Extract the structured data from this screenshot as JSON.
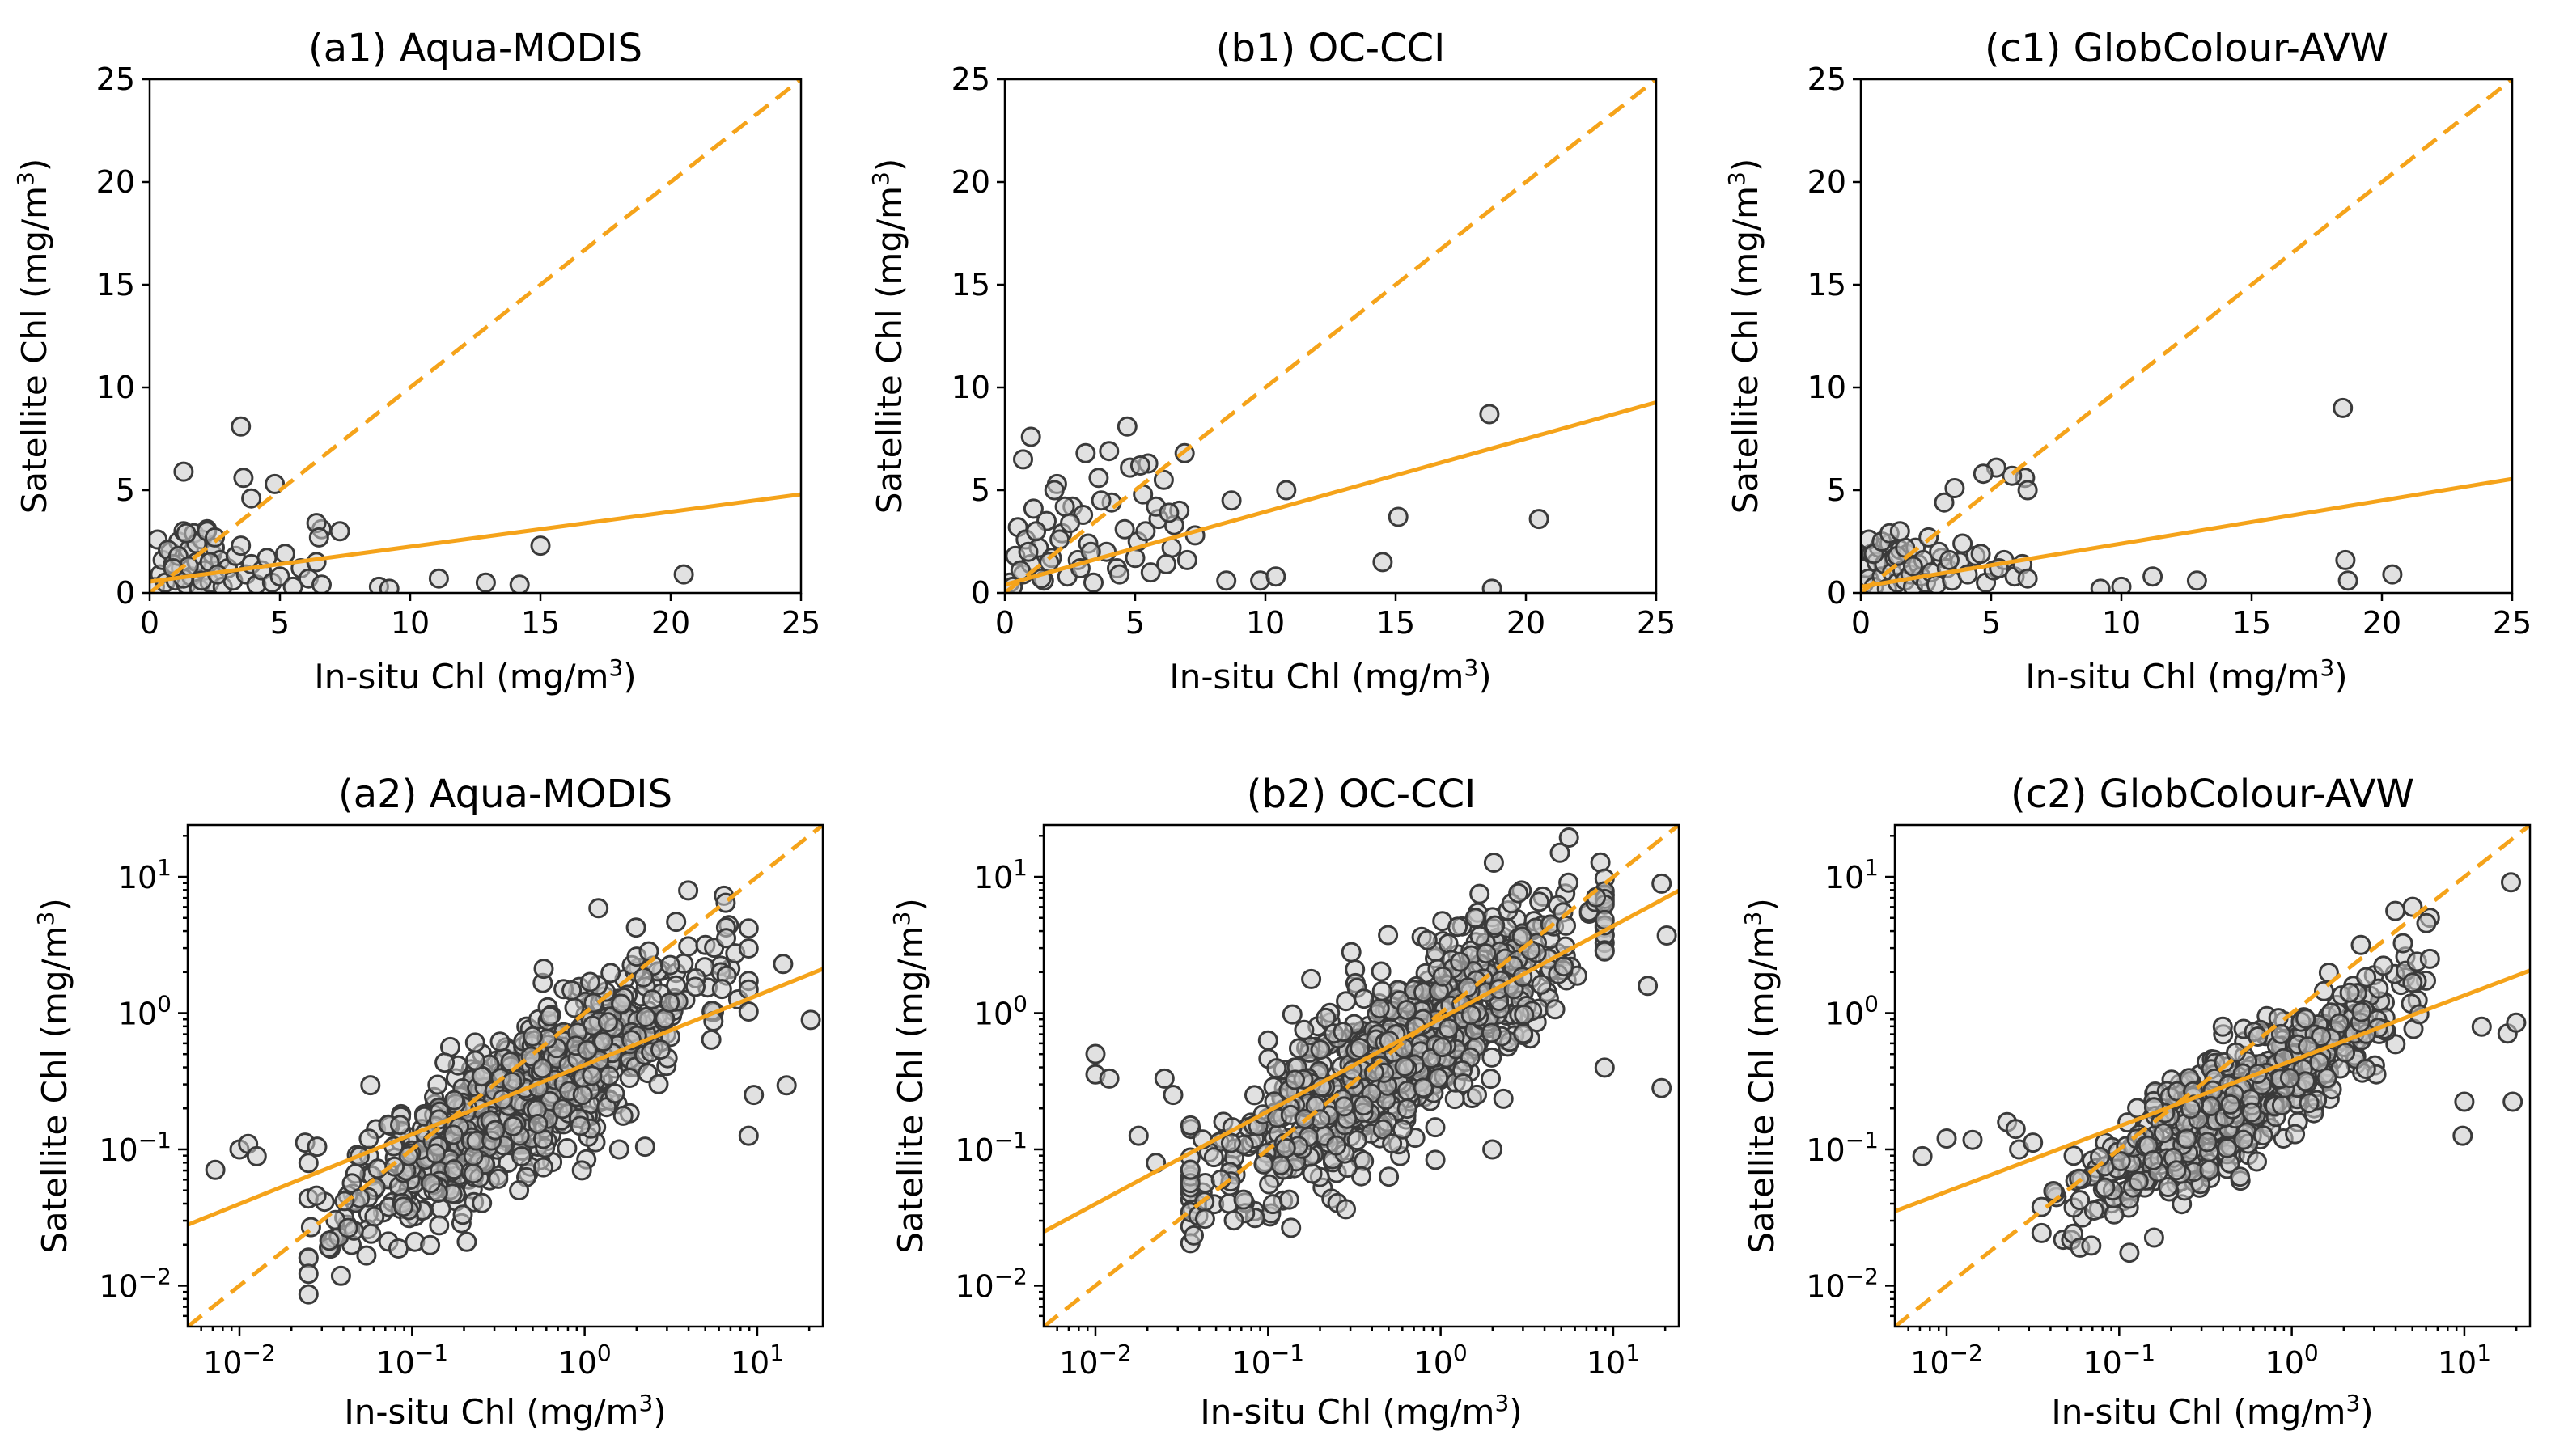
{
  "figure": {
    "x_axis_label": "In-situ Chl (mg/m",
    "y_axis_label": "Satellite Chl (mg/m",
    "unit_superscript": "3"
  },
  "colors": {
    "line": "#f5a31a",
    "marker_edge": "#3a3a3a",
    "marker_fill": "#c9c9c9"
  },
  "chart_data": [
    {
      "id": "a1",
      "type": "scatter",
      "scale": "linear",
      "title": "(a1) Aqua-MODIS",
      "xlim": [
        0,
        25
      ],
      "ylim": [
        0,
        25
      ],
      "xticks": [
        "0",
        "5",
        "10",
        "15",
        "20",
        "25"
      ],
      "yticks": [
        "0",
        "5",
        "10",
        "15",
        "20",
        "25"
      ],
      "one_to_one": true,
      "fit": {
        "slope": 0.17,
        "intercept": 0.55
      },
      "x": [
        0.2,
        0.4,
        0.5,
        0.6,
        0.8,
        1.0,
        1.1,
        1.2,
        1.3,
        1.4,
        1.5,
        1.6,
        1.7,
        1.8,
        1.9,
        2.0,
        2.1,
        2.2,
        2.3,
        2.4,
        2.5,
        2.6,
        2.7,
        2.8,
        3.0,
        3.2,
        3.3,
        3.5,
        3.7,
        3.9,
        4.1,
        4.3,
        4.5,
        4.7,
        5.0,
        5.2,
        5.5,
        5.8,
        6.1,
        6.4,
        6.6,
        0.3,
        0.7,
        0.9,
        1.1,
        1.3,
        1.5,
        1.8,
        2.0,
        2.3,
        2.6,
        1.4,
        0.9,
        3.6,
        3.9,
        3.5,
        4.8,
        1.3,
        2.2,
        2.5,
        6.6,
        6.4,
        7.3,
        6.5,
        8.8,
        9.2,
        11.1,
        12.9,
        14.2,
        15.0,
        20.5
      ],
      "y": [
        0.3,
        0.9,
        1.6,
        0.5,
        2.0,
        0.6,
        2.5,
        1.2,
        3.0,
        0.4,
        2.1,
        0.8,
        2.9,
        1.5,
        0.2,
        2.6,
        1.1,
        3.1,
        0.5,
        1.9,
        2.2,
        0.9,
        1.6,
        0.3,
        1.2,
        0.6,
        1.8,
        2.3,
        0.9,
        1.4,
        0.4,
        1.1,
        1.7,
        0.5,
        0.8,
        1.9,
        0.3,
        1.2,
        0.7,
        1.5,
        0.4,
        2.6,
        2.1,
        1.4,
        1.8,
        0.7,
        1.3,
        2.4,
        0.6,
        1.5,
        0.9,
        2.9,
        1.2,
        5.6,
        4.6,
        8.1,
        5.3,
        5.9,
        3.0,
        2.7,
        3.1,
        3.4,
        3.0,
        2.7,
        0.3,
        0.2,
        0.7,
        0.5,
        0.4,
        2.3,
        0.9
      ]
    },
    {
      "id": "b1",
      "type": "scatter",
      "scale": "linear",
      "title": "(b1) OC-CCI",
      "xlim": [
        0,
        25
      ],
      "ylim": [
        0,
        25
      ],
      "xticks": [
        "0",
        "5",
        "10",
        "15",
        "20",
        "25"
      ],
      "yticks": [
        "0",
        "5",
        "10",
        "15",
        "20",
        "25"
      ],
      "one_to_one": true,
      "fit": {
        "slope": 0.355,
        "intercept": 0.4
      },
      "x": [
        0.2,
        0.4,
        0.5,
        0.7,
        0.8,
        1.0,
        1.1,
        1.3,
        1.5,
        1.6,
        1.8,
        2.0,
        2.2,
        2.4,
        2.6,
        2.8,
        3.0,
        3.2,
        3.4,
        3.6,
        3.9,
        4.1,
        4.3,
        4.6,
        4.8,
        5.1,
        5.3,
        5.6,
        5.9,
        6.1,
        6.4,
        6.7,
        7.0,
        7.3,
        0.3,
        0.6,
        0.9,
        1.2,
        1.4,
        1.7,
        2.1,
        2.5,
        2.9,
        3.3,
        3.7,
        4.4,
        5.0,
        5.4,
        5.8,
        6.2,
        6.5,
        1.0,
        0.7,
        1.9,
        2.3,
        3.1,
        4.7,
        5.5,
        6.9,
        6.3,
        5.2,
        4.0,
        8.7,
        8.5,
        9.8,
        10.4,
        10.8,
        14.5,
        15.1,
        18.6,
        18.7,
        20.5
      ],
      "y": [
        0.5,
        1.8,
        3.2,
        0.9,
        2.6,
        1.4,
        4.1,
        2.2,
        0.6,
        3.5,
        1.7,
        5.3,
        2.9,
        0.8,
        4.2,
        1.6,
        3.8,
        2.4,
        0.5,
        5.6,
        2.0,
        4.4,
        1.2,
        3.1,
        6.1,
        2.5,
        4.8,
        1.0,
        3.6,
        5.5,
        2.2,
        4.0,
        1.6,
        2.8,
        0.3,
        1.1,
        2.0,
        3.0,
        0.7,
        1.5,
        2.6,
        3.4,
        1.2,
        2.0,
        4.5,
        0.9,
        1.7,
        3.0,
        4.2,
        1.4,
        3.3,
        7.6,
        6.5,
        5.0,
        4.2,
        6.8,
        8.1,
        6.3,
        6.8,
        3.9,
        6.2,
        6.9,
        4.5,
        0.6,
        0.6,
        0.8,
        5.0,
        1.5,
        3.7,
        8.7,
        0.2,
        3.6
      ]
    },
    {
      "id": "c1",
      "type": "scatter",
      "scale": "linear",
      "title": "(c1) GlobColour-AVW",
      "xlim": [
        0,
        25
      ],
      "ylim": [
        0,
        25
      ],
      "xticks": [
        "0",
        "5",
        "10",
        "15",
        "20",
        "25"
      ],
      "yticks": [
        "0",
        "5",
        "10",
        "15",
        "20",
        "25"
      ],
      "one_to_one": true,
      "fit": {
        "slope": 0.21,
        "intercept": 0.3
      },
      "x": [
        0.1,
        0.2,
        0.3,
        0.4,
        0.5,
        0.6,
        0.7,
        0.8,
        0.9,
        1.0,
        1.1,
        1.2,
        1.3,
        1.4,
        1.5,
        1.6,
        1.7,
        1.8,
        1.9,
        2.0,
        2.1,
        2.2,
        2.3,
        2.4,
        2.5,
        2.7,
        2.9,
        3.1,
        3.3,
        3.5,
        3.8,
        4.1,
        4.4,
        4.8,
        5.1,
        5.5,
        5.9,
        6.2,
        6.4,
        0.3,
        0.5,
        0.8,
        1.1,
        1.4,
        1.7,
        2.0,
        2.6,
        3.0,
        3.4,
        3.9,
        4.6,
        5.3,
        6.3,
        6.4,
        5.8,
        5.2,
        4.7,
        3.2,
        3.6,
        1.5,
        9.2,
        10.0,
        11.2,
        12.9,
        18.5,
        18.6,
        18.7,
        20.4
      ],
      "y": [
        0.4,
        1.2,
        0.7,
        1.9,
        0.3,
        1.5,
        2.2,
        0.8,
        1.4,
        0.2,
        2.4,
        1.0,
        1.7,
        0.5,
        2.1,
        1.1,
        0.6,
        1.9,
        0.9,
        0.3,
        2.2,
        1.4,
        0.8,
        1.6,
        0.5,
        1.0,
        0.4,
        1.7,
        1.2,
        0.6,
        1.5,
        0.9,
        1.8,
        0.5,
        1.1,
        1.6,
        0.8,
        1.4,
        0.7,
        2.6,
        1.9,
        2.5,
        2.9,
        1.8,
        2.2,
        1.3,
        2.7,
        2.0,
        1.6,
        2.4,
        1.9,
        1.2,
        5.6,
        5.0,
        5.7,
        6.1,
        5.8,
        4.4,
        5.1,
        3.0,
        0.2,
        0.3,
        0.8,
        0.6,
        9.0,
        1.6,
        0.6,
        0.9
      ]
    },
    {
      "id": "a2",
      "type": "scatter",
      "scale": "log",
      "title": "(a2) Aqua-MODIS",
      "xlim_log10": [
        -2.3,
        1.38
      ],
      "ylim_log10": [
        -2.3,
        1.38
      ],
      "tick_base": "10",
      "xtick_exponents": [
        "-2",
        "-1",
        "0",
        "1"
      ],
      "ytick_exponents": [
        "-2",
        "-1",
        "0",
        "1"
      ],
      "one_to_one": true,
      "fit_log10": {
        "slope": 0.51,
        "intercept": -0.38
      },
      "scatter_log10": {
        "n": 750,
        "x_center": -0.35,
        "x_spread": 0.5,
        "x_min": -1.6,
        "x_max": 0.95,
        "slope": 0.8,
        "intercept": -0.32,
        "noise": 0.27,
        "seed": 11
      },
      "outliers_log10": [
        [
          -2.14,
          -1.15
        ],
        [
          -2.0,
          -1.0
        ],
        [
          -1.95,
          -0.96
        ],
        [
          -1.9,
          -1.05
        ],
        [
          -1.62,
          -0.95
        ],
        [
          -1.55,
          -0.98
        ],
        [
          -1.6,
          -1.1
        ],
        [
          -1.05,
          -1.42
        ],
        [
          0.08,
          0.77
        ],
        [
          0.6,
          0.9
        ],
        [
          0.53,
          0.67
        ],
        [
          0.7,
          0.5
        ],
        [
          0.75,
          0.48
        ],
        [
          0.82,
          0.55
        ],
        [
          1.15,
          0.36
        ],
        [
          1.17,
          -0.53
        ],
        [
          1.31,
          -0.05
        ],
        [
          0.98,
          -0.6
        ],
        [
          0.95,
          -0.9
        ],
        [
          0.35,
          -0.98
        ],
        [
          0.2,
          -1.0
        ],
        [
          -0.38,
          -1.3
        ]
      ]
    },
    {
      "id": "b2",
      "type": "scatter",
      "scale": "log",
      "title": "(b2) OC-CCI",
      "xlim_log10": [
        -2.3,
        1.38
      ],
      "ylim_log10": [
        -2.3,
        1.38
      ],
      "tick_base": "10",
      "xtick_exponents": [
        "-2",
        "-1",
        "0",
        "1"
      ],
      "ytick_exponents": [
        "-2",
        "-1",
        "0",
        "1"
      ],
      "one_to_one": true,
      "fit_log10": {
        "slope": 0.68,
        "intercept": -0.04
      },
      "scatter_log10": {
        "n": 800,
        "x_center": -0.28,
        "x_spread": 0.55,
        "x_min": -1.45,
        "x_max": 0.95,
        "slope": 0.82,
        "intercept": -0.1,
        "noise": 0.3,
        "seed": 23
      },
      "outliers_log10": [
        [
          -2.0,
          -0.3
        ],
        [
          -2.0,
          -0.45
        ],
        [
          -1.92,
          -0.48
        ],
        [
          -1.6,
          -0.48
        ],
        [
          -1.55,
          -0.6
        ],
        [
          -1.75,
          -0.9
        ],
        [
          -1.65,
          -1.1
        ],
        [
          1.28,
          0.95
        ],
        [
          1.31,
          0.57
        ],
        [
          1.28,
          -0.55
        ],
        [
          1.2,
          0.2
        ],
        [
          0.95,
          -0.4
        ],
        [
          0.9,
          0.85
        ],
        [
          0.45,
          0.88
        ],
        [
          0.2,
          0.7
        ],
        [
          -0.75,
          0.25
        ],
        [
          -1.0,
          -0.2
        ],
        [
          0.3,
          -1.0
        ],
        [
          -0.3,
          -1.2
        ]
      ]
    },
    {
      "id": "c2",
      "type": "scatter",
      "scale": "log",
      "title": "(c2) GlobColour-AVW",
      "xlim_log10": [
        -2.3,
        1.38
      ],
      "ylim_log10": [
        -2.3,
        1.38
      ],
      "tick_base": "10",
      "xtick_exponents": [
        "-2",
        "-1",
        "0",
        "1"
      ],
      "ytick_exponents": [
        "-2",
        "-1",
        "0",
        "1"
      ],
      "one_to_one": true,
      "fit_log10": {
        "slope": 0.48,
        "intercept": -0.35
      },
      "scatter_log10": {
        "n": 560,
        "x_center": -0.3,
        "x_spread": 0.45,
        "x_min": -1.45,
        "x_max": 0.8,
        "slope": 0.78,
        "intercept": -0.38,
        "noise": 0.22,
        "seed": 37
      },
      "outliers_log10": [
        [
          -2.14,
          -1.05
        ],
        [
          -2.0,
          -0.92
        ],
        [
          -1.85,
          -0.93
        ],
        [
          -1.65,
          -0.8
        ],
        [
          -1.6,
          -0.85
        ],
        [
          -1.58,
          -1.0
        ],
        [
          -1.5,
          -0.95
        ],
        [
          0.99,
          -0.9
        ],
        [
          1.0,
          -0.65
        ],
        [
          1.1,
          -0.1
        ],
        [
          1.25,
          -0.15
        ],
        [
          1.27,
          0.96
        ],
        [
          1.3,
          -0.07
        ],
        [
          1.28,
          -0.65
        ],
        [
          0.8,
          0.7
        ],
        [
          0.78,
          0.66
        ],
        [
          0.7,
          0.78
        ],
        [
          0.6,
          0.75
        ],
        [
          0.4,
          0.5
        ],
        [
          -0.4,
          -0.1
        ],
        [
          -0.3,
          -1.2
        ]
      ]
    }
  ]
}
